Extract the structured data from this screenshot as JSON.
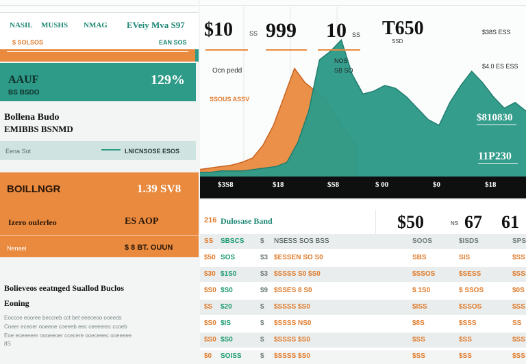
{
  "top_panel": {
    "tabs": [
      "NASIL",
      "MUSHS",
      "NMAG",
      "EVeiy Mva S97"
    ],
    "sub_left": "$ SOLSOS",
    "sub_right": "EAN SOS"
  },
  "teal_panel": {
    "title": "AAUF",
    "value": "129%",
    "sub": "BS BSDO"
  },
  "section": {
    "title_line1": "Bollena Budo",
    "title_line2": "EMIBBS BSNMD",
    "strip_left": "Eena Sot",
    "strip_right": "LNICNSOSE ESOS"
  },
  "orange_panel": {
    "title": "BOILLNGR",
    "value": "1.39 SV8",
    "label": "Izero oulerleo",
    "value2": "ES AOP",
    "foot_left": "Nenaei",
    "foot_right": "$ 8 BT. OUUN"
  },
  "bottom_text": {
    "title": "Bolieveos eeatnged Suallod Buclos",
    "sub": "Eoning",
    "lines": [
      "Eoccoe eooree beccreb cct bet eeeceoo ooeeds",
      "Coeer eceoer ooeeoe coeeeb eec ceeeerec ccoeb",
      "Eoe eceeeeer oooeeoer ccecere ooeceeec ooeeeee"
    ],
    "foot": "8S"
  },
  "chart_labels": {
    "p1": "$10",
    "p1_sub": "SS",
    "p2": "999",
    "p3": "10",
    "p3_sub": "SS",
    "p4": "T650",
    "p4_sub": "SSD",
    "ann1": "Ocn pedd",
    "ann2": "NOS",
    "ann3": "SB SO",
    "ann4": "SSOUS ASSV",
    "r1": "$38S ESS",
    "r2": "$4.0 ES ESS",
    "r3": "$810830",
    "r4": "11P230"
  },
  "chart_data": {
    "type": "area",
    "title": "",
    "xlabel": "",
    "ylabel": "",
    "series": [
      {
        "name": "",
        "color": "#e98a3e",
        "values": [
          5,
          6,
          7,
          8,
          10,
          13,
          22,
          36,
          56,
          76,
          66,
          60,
          54,
          42,
          30,
          22
        ]
      },
      {
        "name": "",
        "color": "#2e9a88",
        "values": [
          3,
          3,
          4,
          4,
          4,
          5,
          6,
          7,
          10,
          24,
          46,
          82,
          88,
          96,
          72,
          58,
          60,
          64,
          62,
          56,
          48,
          40,
          36,
          52,
          64,
          74,
          66,
          56,
          48,
          52,
          46
        ]
      }
    ],
    "ylim": [
      0,
      100
    ]
  },
  "dark_bar": [
    "$3S8",
    "$18",
    "$S8",
    "$ 00",
    "$0",
    "$18"
  ],
  "table": {
    "title": "Dulosase Band",
    "title_prefix": "216",
    "big_prices": [
      "$50",
      "67",
      "61"
    ],
    "big_prefix": "NS",
    "header": [
      "SS",
      "SBSCS",
      "$",
      "NSESS SOS BSS",
      "SOOS",
      "$ISDS",
      "SPSS"
    ],
    "rows": [
      [
        "$50",
        "SOS",
        "$3",
        "$ESSEN SO S0",
        "SBS",
        "SIS",
        "$SS"
      ],
      [
        "$30",
        "$1S0",
        "$3",
        "$SSSS S0 $S0",
        "$SSOS",
        "$SESS",
        "$SSS"
      ],
      [
        "$S0",
        "$S0",
        "$9",
        "$SSES 8 S0",
        "$ 1S0",
        "$ SSOS",
        "$0S"
      ],
      [
        "$S",
        "$20",
        "$",
        "$SSSS $S0",
        "$ISS",
        "$SSOS",
        "$SS"
      ],
      [
        "$S0",
        "$IS",
        "$",
        "$SSSS NS0",
        "$8S",
        "$SSS",
        "SS"
      ],
      [
        "$S0",
        "$S0",
        "$",
        "$SSSS $S0",
        "$SS",
        "$SS",
        "$SS"
      ],
      [
        "$0",
        "SOISS",
        "$",
        "$SSSS $S0",
        "$SS",
        "$SS",
        "$SS"
      ]
    ]
  }
}
